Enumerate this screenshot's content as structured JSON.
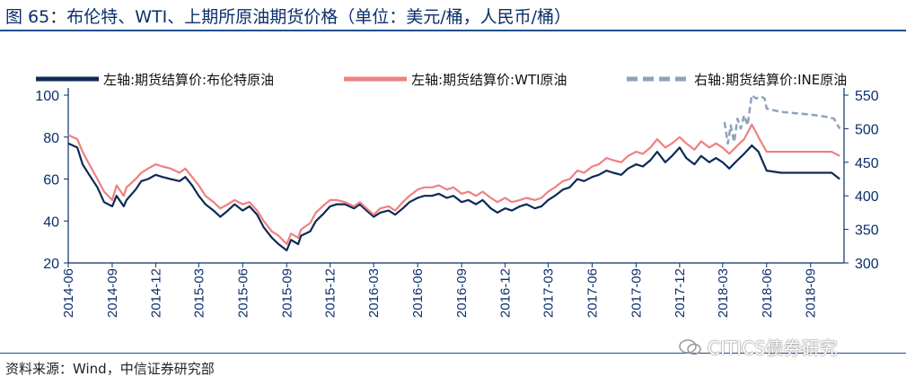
{
  "title": "图 65：布伦特、WTI、上期所原油期货价格（单位：美元/桶，人民币/桶）",
  "source": "资料来源：Wind，中信证券研究部",
  "watermark": "CITICS债券研究",
  "chart_data": {
    "type": "line",
    "legend": {
      "placement": "top",
      "entries": [
        "左轴:期货结算价:布伦特原油",
        "左轴:期货结算价:WTI原油",
        "右轴:期货结算价:INE原油"
      ]
    },
    "left_axis": {
      "ylim": [
        20,
        100
      ],
      "ticks": [
        "20",
        "40",
        "60",
        "80",
        "100"
      ]
    },
    "right_axis": {
      "ylim": [
        300,
        550
      ],
      "ticks": [
        "300",
        "350",
        "400",
        "450",
        "500",
        "550"
      ]
    },
    "x_ticks": [
      "2014-06",
      "2014-09",
      "2014-12",
      "2015-03",
      "2015-06",
      "2015-09",
      "2015-12",
      "2016-03",
      "2016-06",
      "2016-09",
      "2016-12",
      "2017-03",
      "2017-06",
      "2017-09",
      "2017-12",
      "2018-03",
      "2018-06",
      "2018-09"
    ],
    "series": [
      {
        "name": "左轴:期货结算价:布伦特原油",
        "axis": "left",
        "color": "#0d2a57",
        "points": [
          [
            "2014-06",
            77
          ],
          [
            "2014-06-20",
            75
          ],
          [
            "2014-07",
            67
          ],
          [
            "2014-07-15",
            62
          ],
          [
            "2014-08",
            56
          ],
          [
            "2014-08-15",
            49
          ],
          [
            "2014-09",
            47
          ],
          [
            "2014-09-10",
            52
          ],
          [
            "2014-09-25",
            47
          ],
          [
            "2014-10",
            50
          ],
          [
            "2014-10-20",
            55
          ],
          [
            "2014-11",
            59
          ],
          [
            "2014-11-15",
            60
          ],
          [
            "2014-12",
            62
          ],
          [
            "2014-12-15",
            61
          ],
          [
            "2015-01",
            60
          ],
          [
            "2015-01-20",
            59
          ],
          [
            "2015-02",
            61
          ],
          [
            "2015-02-15",
            57
          ],
          [
            "2015-03",
            52
          ],
          [
            "2015-03-15",
            48
          ],
          [
            "2015-04",
            45
          ],
          [
            "2015-04-15",
            42
          ],
          [
            "2015-05",
            45
          ],
          [
            "2015-05-15",
            48
          ],
          [
            "2015-06",
            45
          ],
          [
            "2015-06-15",
            47
          ],
          [
            "2015-07",
            43
          ],
          [
            "2015-07-15",
            37
          ],
          [
            "2015-08",
            32
          ],
          [
            "2015-08-15",
            29
          ],
          [
            "2015-09",
            26
          ],
          [
            "2015-09-10",
            31
          ],
          [
            "2015-09-25",
            29
          ],
          [
            "2015-10",
            33
          ],
          [
            "2015-10-20",
            35
          ],
          [
            "2015-11",
            40
          ],
          [
            "2015-11-15",
            43
          ],
          [
            "2015-12",
            47
          ],
          [
            "2015-12-15",
            48
          ],
          [
            "2016-01",
            48
          ],
          [
            "2016-01-20",
            46
          ],
          [
            "2016-02",
            48
          ],
          [
            "2016-02-15",
            45
          ],
          [
            "2016-03",
            42
          ],
          [
            "2016-03-15",
            44
          ],
          [
            "2016-04",
            45
          ],
          [
            "2016-04-15",
            43
          ],
          [
            "2016-05",
            46
          ],
          [
            "2016-05-15",
            49
          ],
          [
            "2016-06",
            51
          ],
          [
            "2016-06-15",
            52
          ],
          [
            "2016-07",
            52
          ],
          [
            "2016-07-15",
            53
          ],
          [
            "2016-08",
            51
          ],
          [
            "2016-08-15",
            52
          ],
          [
            "2016-09",
            49
          ],
          [
            "2016-09-15",
            50
          ],
          [
            "2016-10",
            48
          ],
          [
            "2016-10-15",
            50
          ],
          [
            "2016-11",
            46
          ],
          [
            "2016-11-15",
            44
          ],
          [
            "2016-12",
            46
          ],
          [
            "2016-12-15",
            45
          ],
          [
            "2017-01",
            47
          ],
          [
            "2017-01-15",
            48
          ],
          [
            "2017-02",
            46
          ],
          [
            "2017-02-15",
            47
          ],
          [
            "2017-03",
            50
          ],
          [
            "2017-03-15",
            52
          ],
          [
            "2017-04",
            55
          ],
          [
            "2017-04-15",
            56
          ],
          [
            "2017-05",
            60
          ],
          [
            "2017-05-15",
            59
          ],
          [
            "2017-06",
            61
          ],
          [
            "2017-06-15",
            62
          ],
          [
            "2017-07",
            64
          ],
          [
            "2017-07-15",
            63
          ],
          [
            "2017-08",
            62
          ],
          [
            "2017-08-15",
            65
          ],
          [
            "2017-09",
            67
          ],
          [
            "2017-09-15",
            66
          ],
          [
            "2017-10",
            69
          ],
          [
            "2017-10-15",
            73
          ],
          [
            "2017-11",
            68
          ],
          [
            "2017-11-15",
            71
          ],
          [
            "2017-12",
            75
          ],
          [
            "2017-12-15",
            70
          ],
          [
            "2018-01",
            67
          ],
          [
            "2018-01-15",
            71
          ],
          [
            "2018-02",
            68
          ],
          [
            "2018-02-15",
            70
          ],
          [
            "2018-03",
            68
          ],
          [
            "2018-03-15",
            65
          ],
          [
            "2018-04",
            69
          ],
          [
            "2018-04-15",
            72
          ],
          [
            "2018-05",
            76
          ],
          [
            "2018-05-15",
            73
          ],
          [
            "2018-06",
            64
          ],
          [
            "2018-07",
            63
          ],
          [
            "2018-08",
            63
          ],
          [
            "2018-09",
            63
          ],
          [
            "2018-10",
            63
          ],
          [
            "2018-10-15",
            63
          ],
          [
            "2018-11",
            60
          ]
        ]
      },
      {
        "name": "左轴:期货结算价:WTI原油",
        "axis": "left",
        "color": "#f08080",
        "points": [
          [
            "2014-06",
            81
          ],
          [
            "2014-06-20",
            79
          ],
          [
            "2014-07",
            73
          ],
          [
            "2014-07-15",
            67
          ],
          [
            "2014-08",
            60
          ],
          [
            "2014-08-15",
            54
          ],
          [
            "2014-09",
            50
          ],
          [
            "2014-09-10",
            57
          ],
          [
            "2014-09-25",
            52
          ],
          [
            "2014-10",
            56
          ],
          [
            "2014-10-20",
            60
          ],
          [
            "2014-11",
            63
          ],
          [
            "2014-11-15",
            65
          ],
          [
            "2014-12",
            67
          ],
          [
            "2014-12-15",
            66
          ],
          [
            "2015-01",
            65
          ],
          [
            "2015-01-20",
            63
          ],
          [
            "2015-02",
            65
          ],
          [
            "2015-02-15",
            61
          ],
          [
            "2015-03",
            57
          ],
          [
            "2015-03-15",
            52
          ],
          [
            "2015-04",
            49
          ],
          [
            "2015-04-15",
            46
          ],
          [
            "2015-05",
            48
          ],
          [
            "2015-05-15",
            50
          ],
          [
            "2015-06",
            48
          ],
          [
            "2015-06-15",
            49
          ],
          [
            "2015-07",
            45
          ],
          [
            "2015-07-15",
            40
          ],
          [
            "2015-08",
            35
          ],
          [
            "2015-08-15",
            33
          ],
          [
            "2015-09",
            29
          ],
          [
            "2015-09-10",
            34
          ],
          [
            "2015-09-25",
            32
          ],
          [
            "2015-10",
            36
          ],
          [
            "2015-10-20",
            39
          ],
          [
            "2015-11",
            44
          ],
          [
            "2015-11-15",
            47
          ],
          [
            "2015-12",
            50
          ],
          [
            "2015-12-15",
            50
          ],
          [
            "2016-01",
            49
          ],
          [
            "2016-01-20",
            47
          ],
          [
            "2016-02",
            49
          ],
          [
            "2016-02-15",
            46
          ],
          [
            "2016-03",
            43
          ],
          [
            "2016-03-15",
            46
          ],
          [
            "2016-04",
            47
          ],
          [
            "2016-04-15",
            45
          ],
          [
            "2016-05",
            49
          ],
          [
            "2016-05-15",
            52
          ],
          [
            "2016-06",
            55
          ],
          [
            "2016-06-15",
            56
          ],
          [
            "2016-07",
            56
          ],
          [
            "2016-07-15",
            57
          ],
          [
            "2016-08",
            55
          ],
          [
            "2016-08-15",
            56
          ],
          [
            "2016-09",
            53
          ],
          [
            "2016-09-15",
            54
          ],
          [
            "2016-10",
            52
          ],
          [
            "2016-10-15",
            54
          ],
          [
            "2016-11",
            51
          ],
          [
            "2016-11-15",
            49
          ],
          [
            "2016-12",
            51
          ],
          [
            "2016-12-15",
            49
          ],
          [
            "2017-01",
            50
          ],
          [
            "2017-01-15",
            51
          ],
          [
            "2017-02",
            50
          ],
          [
            "2017-02-15",
            51
          ],
          [
            "2017-03",
            54
          ],
          [
            "2017-03-15",
            56
          ],
          [
            "2017-04",
            59
          ],
          [
            "2017-04-15",
            60
          ],
          [
            "2017-05",
            64
          ],
          [
            "2017-05-15",
            63
          ],
          [
            "2017-06",
            66
          ],
          [
            "2017-06-15",
            67
          ],
          [
            "2017-07",
            70
          ],
          [
            "2017-07-15",
            69
          ],
          [
            "2017-08",
            68
          ],
          [
            "2017-08-15",
            71
          ],
          [
            "2017-09",
            73
          ],
          [
            "2017-09-15",
            72
          ],
          [
            "2017-10",
            75
          ],
          [
            "2017-10-15",
            79
          ],
          [
            "2017-11",
            75
          ],
          [
            "2017-11-15",
            77
          ],
          [
            "2017-12",
            80
          ],
          [
            "2017-12-15",
            77
          ],
          [
            "2018-01",
            74
          ],
          [
            "2018-01-15",
            78
          ],
          [
            "2018-02",
            75
          ],
          [
            "2018-02-15",
            77
          ],
          [
            "2018-03",
            75
          ],
          [
            "2018-03-15",
            72
          ],
          [
            "2018-04",
            76
          ],
          [
            "2018-04-15",
            79
          ],
          [
            "2018-05",
            86
          ],
          [
            "2018-05-15",
            80
          ],
          [
            "2018-06",
            73
          ],
          [
            "2018-07",
            73
          ],
          [
            "2018-08",
            73
          ],
          [
            "2018-09",
            73
          ],
          [
            "2018-10",
            73
          ],
          [
            "2018-10-15",
            73
          ],
          [
            "2018-11",
            71
          ]
        ]
      },
      {
        "name": "右轴:期货结算价:INE原油",
        "axis": "right",
        "color": "#8fa2ba",
        "dash": true,
        "points": [
          [
            "2018-03-05",
            510
          ],
          [
            "2018-03-12",
            478
          ],
          [
            "2018-03-18",
            505
          ],
          [
            "2018-03-25",
            480
          ],
          [
            "2018-04",
            515
          ],
          [
            "2018-04-08",
            500
          ],
          [
            "2018-04-15",
            520
          ],
          [
            "2018-04-22",
            505
          ],
          [
            "2018-05",
            550
          ],
          [
            "2018-05-10",
            545
          ],
          [
            "2018-05-20",
            548
          ],
          [
            "2018-05-28",
            545
          ],
          [
            "2018-06",
            530
          ],
          [
            "2018-07",
            525
          ],
          [
            "2018-08",
            523
          ],
          [
            "2018-09",
            521
          ],
          [
            "2018-10",
            518
          ],
          [
            "2018-10-20",
            515
          ],
          [
            "2018-11",
            500
          ]
        ]
      }
    ]
  }
}
